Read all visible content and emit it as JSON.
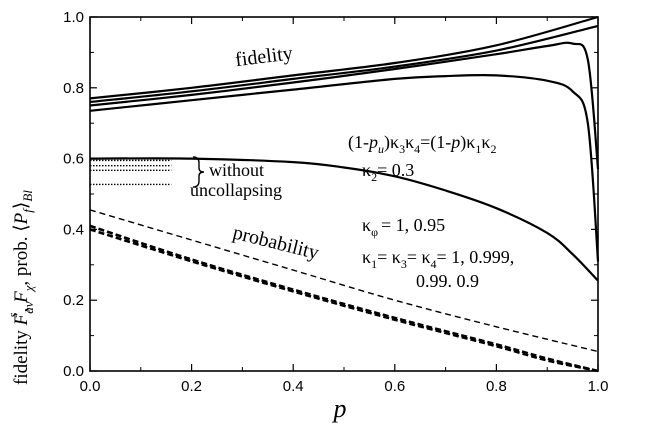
{
  "chart_data": {
    "type": "line",
    "xlabel": "p",
    "ylabel": {
      "prefix": "fidelity ",
      "Fav": "F",
      "Fav_sub": "av",
      "Fav_sup": "s",
      "sep1": ", ",
      "Fchi": "F",
      "Fchi_sub": "χ",
      "sep2": ",  prob. ",
      "angle_l": "⟨",
      "P": "P",
      "P_sub": "f",
      "angle_r": "⟩",
      "Bl": "Bl"
    },
    "xlim": [
      0,
      1
    ],
    "ylim": [
      0,
      1
    ],
    "x_ticks": [
      0,
      0.2,
      0.4,
      0.6,
      0.8,
      1
    ],
    "x_tick_labels": [
      "0.0",
      "0.2",
      "0.4",
      "0.6",
      "0.8",
      "1.0"
    ],
    "y_ticks": [
      0,
      0.2,
      0.4,
      0.6,
      0.8,
      1
    ],
    "y_tick_labels": [
      "0.0",
      "0.2",
      "0.4",
      "0.6",
      "0.8",
      "1.0"
    ],
    "grid": false,
    "annotations": {
      "fidelity": "fidelity",
      "probability": "probability",
      "eq_l1": "(1-",
      "eq_pu": "p",
      "eq_pu_sub": "u",
      "eq_l2": ")κ",
      "eq_k3": "3",
      "eq_k": "κ",
      "eq_k4": "4",
      "eq_l3": "=(1-",
      "eq_p": "p",
      "eq_l4": ")κ",
      "eq_k1": "1",
      "eq_k2b": "κ",
      "eq_k2": "2",
      "k2_k": "κ",
      "k2_sub": "2",
      "k2_val": "= 0.3",
      "kphi_k": "κ",
      "kphi_sub": "φ",
      "kphi_val": "= 1, 0.95",
      "k1_k": "κ",
      "k1_sub": "1",
      "k1_eq": "= κ",
      "k3_sub": "3",
      "k3_eq": "= κ",
      "k4_sub": "4",
      "k_vals1": "= 1, 0.999,",
      "k_vals2": "0.99. 0.9",
      "without": "without",
      "uncollapsing": "uncollapsing"
    },
    "series": [
      {
        "style": "solid",
        "x": [
          0,
          0.2,
          0.4,
          0.6,
          0.8,
          1.0
        ],
        "y": [
          0.77,
          0.8,
          0.835,
          0.87,
          0.92,
          1.0
        ]
      },
      {
        "style": "solid",
        "x": [
          0,
          0.2,
          0.4,
          0.6,
          0.8,
          1.0
        ],
        "y": [
          0.76,
          0.79,
          0.825,
          0.86,
          0.905,
          0.975
        ]
      },
      {
        "style": "solid",
        "x": [
          0,
          0.2,
          0.4,
          0.6,
          0.8,
          0.9,
          0.95,
          0.98,
          1.0
        ],
        "y": [
          0.75,
          0.78,
          0.815,
          0.853,
          0.895,
          0.918,
          0.925,
          0.88,
          0.57
        ]
      },
      {
        "style": "solid",
        "x": [
          0,
          0.2,
          0.4,
          0.6,
          0.7,
          0.8,
          0.9,
          0.95,
          0.98,
          1.0
        ],
        "y": [
          0.735,
          0.765,
          0.795,
          0.825,
          0.833,
          0.835,
          0.82,
          0.79,
          0.7,
          0.31
        ]
      },
      {
        "style": "solid",
        "x": [
          0,
          0.2,
          0.4,
          0.5,
          0.6,
          0.7,
          0.8,
          0.9,
          0.95,
          1.0
        ],
        "y": [
          0.6,
          0.6,
          0.59,
          0.575,
          0.55,
          0.51,
          0.46,
          0.39,
          0.33,
          0.255
        ]
      },
      {
        "style": "dotted",
        "x": [
          0,
          0.16
        ],
        "y": [
          0.595,
          0.595
        ]
      },
      {
        "style": "dotted",
        "x": [
          0,
          0.16
        ],
        "y": [
          0.58,
          0.58
        ]
      },
      {
        "style": "dotted",
        "x": [
          0,
          0.16
        ],
        "y": [
          0.567,
          0.567
        ]
      },
      {
        "style": "dotted",
        "x": [
          0,
          0.16
        ],
        "y": [
          0.527,
          0.527
        ]
      },
      {
        "style": "dashed",
        "x": [
          0,
          0.2,
          0.4,
          0.6,
          0.8,
          1.0
        ],
        "y": [
          0.455,
          0.37,
          0.285,
          0.2,
          0.125,
          0.055
        ]
      },
      {
        "style": "dashed-bold",
        "x": [
          0,
          0.2,
          0.4,
          0.6,
          0.8,
          0.9,
          1.0
        ],
        "y": [
          0.41,
          0.315,
          0.23,
          0.15,
          0.075,
          0.035,
          0.0
        ]
      },
      {
        "style": "dashed-bold",
        "x": [
          0,
          0.2,
          0.4,
          0.6,
          0.8,
          0.9,
          1.0
        ],
        "y": [
          0.4,
          0.31,
          0.225,
          0.145,
          0.07,
          0.03,
          0.0
        ]
      }
    ]
  }
}
